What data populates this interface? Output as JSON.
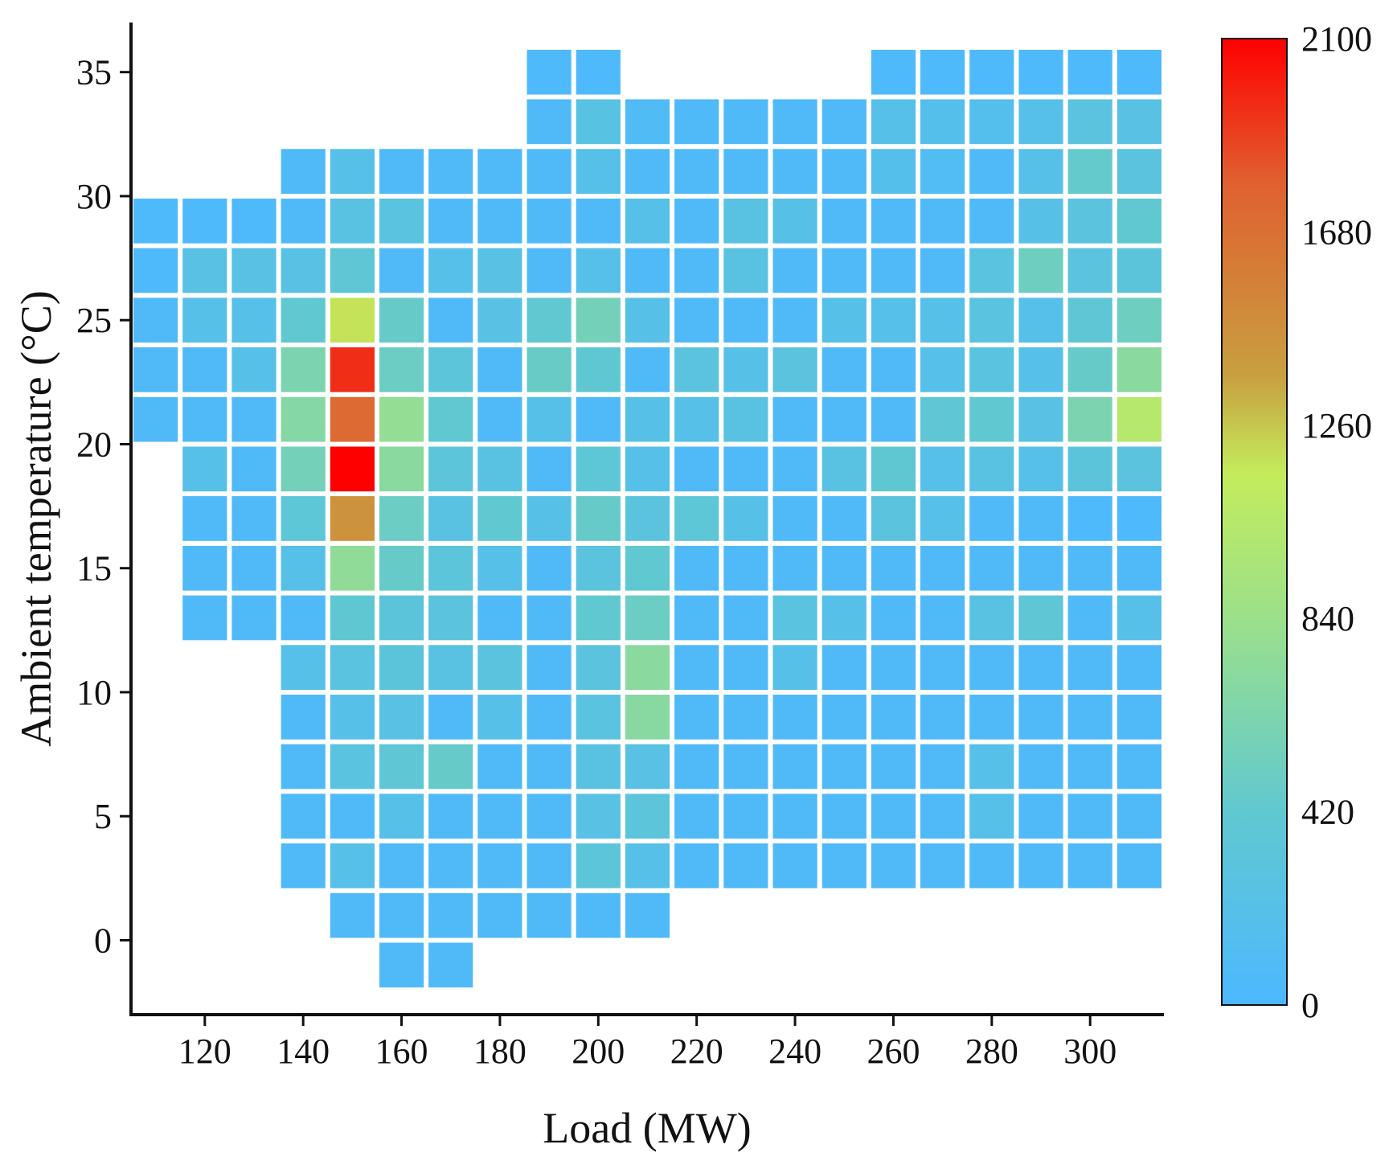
{
  "chart_data": {
    "type": "heatmap",
    "title": "",
    "xlabel": "Load (MW)",
    "ylabel": "Ambient temperature (°C)",
    "xlim": [
      105,
      315
    ],
    "ylim": [
      -3,
      37
    ],
    "x_ticks": [
      120,
      140,
      160,
      180,
      200,
      220,
      240,
      260,
      280,
      300
    ],
    "y_ticks": [
      0,
      5,
      10,
      15,
      20,
      25,
      30,
      35
    ],
    "x_centers": [
      110,
      120,
      130,
      140,
      150,
      160,
      170,
      180,
      190,
      200,
      210,
      220,
      230,
      240,
      250,
      260,
      270,
      280,
      290,
      300,
      310
    ],
    "y_centers": [
      35,
      33,
      31,
      29,
      27,
      25,
      23,
      21,
      19,
      17,
      15,
      13,
      11,
      9,
      7,
      5,
      3,
      1,
      -1
    ],
    "colorbar": {
      "min": 0,
      "max": 2100,
      "ticks": [
        0,
        420,
        840,
        1260,
        1680,
        2100
      ],
      "colors": [
        "#4db8ff",
        "#60c8d0",
        "#9be08a",
        "#c4ec5c",
        "#c8a040",
        "#e06030",
        "#ff0000"
      ]
    },
    "grid_note": "rows follow y_centers (top to bottom), columns follow x_centers (left to right); null = no data",
    "values": [
      [
        null,
        null,
        null,
        null,
        null,
        null,
        null,
        null,
        40,
        40,
        null,
        null,
        null,
        null,
        null,
        40,
        40,
        40,
        40,
        40,
        40
      ],
      [
        null,
        null,
        null,
        null,
        null,
        null,
        null,
        null,
        60,
        250,
        80,
        60,
        60,
        60,
        60,
        200,
        180,
        160,
        200,
        300,
        240
      ],
      [
        null,
        null,
        null,
        60,
        200,
        60,
        60,
        60,
        60,
        200,
        60,
        60,
        60,
        60,
        60,
        180,
        120,
        60,
        200,
        450,
        300
      ],
      [
        40,
        40,
        40,
        60,
        260,
        280,
        60,
        60,
        60,
        60,
        200,
        60,
        260,
        220,
        60,
        60,
        60,
        60,
        220,
        300,
        420
      ],
      [
        40,
        240,
        240,
        240,
        380,
        60,
        200,
        240,
        60,
        200,
        60,
        60,
        260,
        60,
        60,
        60,
        60,
        280,
        520,
        300,
        320
      ],
      [
        60,
        200,
        200,
        420,
        1180,
        460,
        60,
        240,
        420,
        560,
        220,
        60,
        60,
        60,
        200,
        200,
        200,
        280,
        200,
        380,
        520
      ],
      [
        60,
        60,
        200,
        620,
        1950,
        500,
        340,
        60,
        480,
        400,
        60,
        300,
        220,
        300,
        60,
        60,
        200,
        280,
        200,
        460,
        720
      ],
      [
        60,
        60,
        60,
        680,
        1720,
        780,
        420,
        60,
        200,
        60,
        220,
        200,
        260,
        60,
        60,
        60,
        380,
        420,
        240,
        620,
        1040
      ],
      [
        null,
        200,
        60,
        560,
        2100,
        720,
        340,
        260,
        60,
        360,
        200,
        60,
        60,
        60,
        260,
        400,
        200,
        260,
        200,
        320,
        300
      ],
      [
        null,
        60,
        60,
        360,
        1460,
        500,
        260,
        420,
        220,
        460,
        300,
        360,
        220,
        60,
        60,
        300,
        200,
        60,
        60,
        40,
        40
      ],
      [
        null,
        60,
        60,
        200,
        760,
        460,
        340,
        200,
        60,
        300,
        420,
        60,
        60,
        60,
        60,
        60,
        60,
        60,
        60,
        60,
        60
      ],
      [
        null,
        60,
        60,
        60,
        400,
        320,
        300,
        60,
        60,
        420,
        500,
        60,
        60,
        280,
        200,
        60,
        60,
        260,
        380,
        60,
        200
      ],
      [
        null,
        null,
        null,
        200,
        280,
        320,
        260,
        300,
        60,
        300,
        720,
        60,
        60,
        200,
        60,
        60,
        60,
        60,
        60,
        60,
        60
      ],
      [
        null,
        null,
        null,
        60,
        200,
        240,
        60,
        200,
        60,
        280,
        700,
        60,
        60,
        60,
        60,
        60,
        60,
        60,
        60,
        60,
        60
      ],
      [
        null,
        null,
        null,
        60,
        280,
        380,
        460,
        60,
        60,
        260,
        240,
        60,
        60,
        60,
        60,
        60,
        60,
        200,
        60,
        60,
        60
      ],
      [
        null,
        null,
        null,
        60,
        60,
        200,
        60,
        60,
        60,
        240,
        340,
        60,
        60,
        60,
        60,
        60,
        60,
        200,
        60,
        60,
        60
      ],
      [
        null,
        null,
        null,
        60,
        200,
        60,
        60,
        60,
        60,
        340,
        200,
        60,
        60,
        60,
        60,
        60,
        60,
        60,
        60,
        60,
        60
      ],
      [
        null,
        null,
        null,
        null,
        60,
        60,
        60,
        60,
        60,
        60,
        60,
        null,
        null,
        null,
        null,
        null,
        null,
        null,
        null,
        null,
        null
      ],
      [
        null,
        null,
        null,
        null,
        null,
        60,
        60,
        null,
        null,
        null,
        null,
        null,
        null,
        null,
        null,
        null,
        null,
        null,
        null,
        null,
        null
      ]
    ]
  }
}
